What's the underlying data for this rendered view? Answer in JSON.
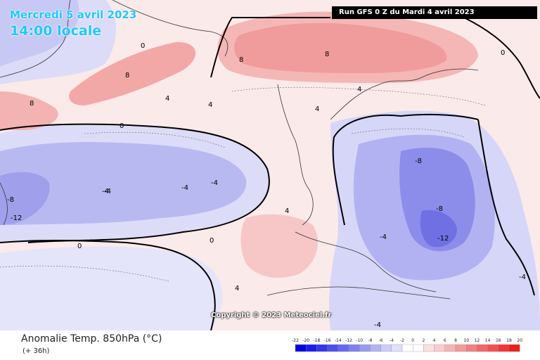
{
  "header": {
    "date": "Mercredi 5 avril 2023",
    "local_time": "14:00 locale",
    "run_info": "Run GFS 0 Z du Mardi 4 avril 2023"
  },
  "footer": {
    "title": "Anomalie Temp. 850hPa (°C)",
    "forecast_offset": "(+ 36h)",
    "copyright": "Copyright © 2023 Meteociel.fr"
  },
  "legend": {
    "ticks": [
      "-22",
      "-20",
      "-18",
      "-16",
      "-14",
      "-12",
      "-10",
      "-8",
      "-6",
      "-4",
      "-2",
      "0",
      "2",
      "4",
      "6",
      "8",
      "10",
      "12",
      "14",
      "16",
      "18",
      "20"
    ],
    "colors": [
      "#0000f0",
      "#1a1af5",
      "#3333f5",
      "#4d4df5",
      "#6666f5",
      "#7f7ff5",
      "#9999f5",
      "#b2b2f7",
      "#ccccfa",
      "#e0e0fc",
      "#ffffff",
      "#ffffff",
      "#fce0e0",
      "#facccc",
      "#f7b2b2",
      "#f59999",
      "#f57f7f",
      "#f56666",
      "#f54d4d",
      "#f53333",
      "#f51a1a"
    ]
  },
  "colors": {
    "date_text": "#1ec8ff",
    "warm": "#f5a0a0",
    "cold": "#a9a9f0"
  },
  "map_labels": [
    "0",
    "0",
    "4",
    "-4",
    "4",
    "-4",
    "-8",
    "-12",
    "8",
    "8",
    "8",
    "-12",
    "-8",
    "-4",
    "4",
    "0",
    "-4",
    "-8",
    "-4",
    "4",
    "0",
    "-4",
    "4",
    "0",
    "4",
    "8",
    "-4"
  ]
}
